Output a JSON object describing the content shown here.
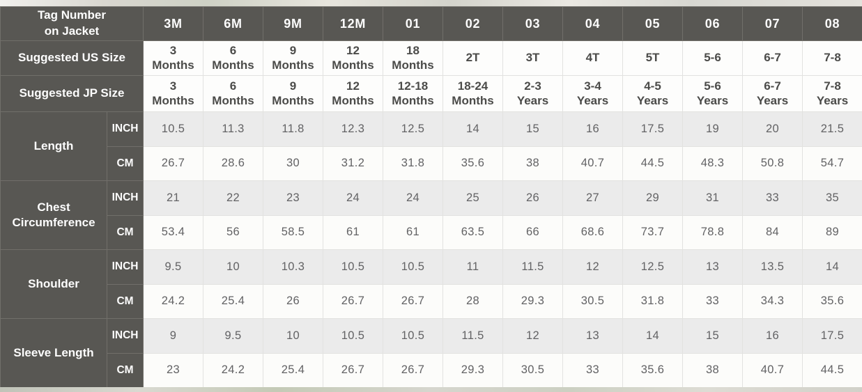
{
  "table": {
    "corner_header": {
      "text": "Tag Number\non Jacket"
    },
    "tag_numbers": [
      "3M",
      "6M",
      "9M",
      "12M",
      "01",
      "02",
      "03",
      "04",
      "05",
      "06",
      "07",
      "08"
    ],
    "size_rows": [
      {
        "label": "Suggested US Size",
        "values": [
          "3\nMonths",
          "6\nMonths",
          "9\nMonths",
          "12\nMonths",
          "18\nMonths",
          "2T",
          "3T",
          "4T",
          "5T",
          "5-6",
          "6-7",
          "7-8"
        ]
      },
      {
        "label": "Suggested JP Size",
        "values": [
          "3\nMonths",
          "6\nMonths",
          "9\nMonths",
          "12\nMonths",
          "12-18\nMonths",
          "18-24\nMonths",
          "2-3\nYears",
          "3-4\nYears",
          "4-5\nYears",
          "5-6\nYears",
          "6-7\nYears",
          "7-8\nYears"
        ]
      }
    ],
    "unit_labels": {
      "inch": "INCH",
      "cm": "CM"
    },
    "measurements": [
      {
        "label": "Length",
        "inch": [
          10.5,
          11.3,
          11.8,
          12.3,
          12.5,
          14,
          15,
          16,
          17.5,
          19,
          20,
          21.5
        ],
        "cm": [
          26.7,
          28.6,
          30,
          31.2,
          31.8,
          35.6,
          38,
          40.7,
          44.5,
          48.3,
          50.8,
          54.7
        ]
      },
      {
        "label": "Chest Circumference",
        "inch": [
          21,
          22,
          23,
          24,
          24,
          25,
          26,
          27,
          29,
          31,
          33,
          35
        ],
        "cm": [
          53.4,
          56,
          58.5,
          61,
          61,
          63.5,
          66,
          68.6,
          73.7,
          78.8,
          84,
          89
        ]
      },
      {
        "label": "Shoulder",
        "inch": [
          9.5,
          10,
          10.3,
          10.5,
          10.5,
          11,
          11.5,
          12,
          12.5,
          13,
          13.5,
          14
        ],
        "cm": [
          24.2,
          25.4,
          26,
          26.7,
          26.7,
          28,
          29.3,
          30.5,
          31.8,
          33,
          34.3,
          35.6
        ]
      },
      {
        "label": "Sleeve Length",
        "inch": [
          9,
          9.5,
          10,
          10.5,
          10.5,
          11.5,
          12,
          13,
          14,
          15,
          16,
          17.5
        ],
        "cm": [
          23,
          24.2,
          25.4,
          26.7,
          26.7,
          29.3,
          30.5,
          33,
          35.6,
          38,
          40.7,
          44.5
        ]
      }
    ],
    "colors": {
      "header_bg": "#585753",
      "header_border": "#716f6a",
      "header_text": "#fdfdfd",
      "inch_row_bg": "#ebebeb",
      "cm_row_bg": "#fcfcfa",
      "data_border": "#e2e2e0",
      "data_text": "#626264",
      "size_text": "#4b4b49"
    }
  }
}
